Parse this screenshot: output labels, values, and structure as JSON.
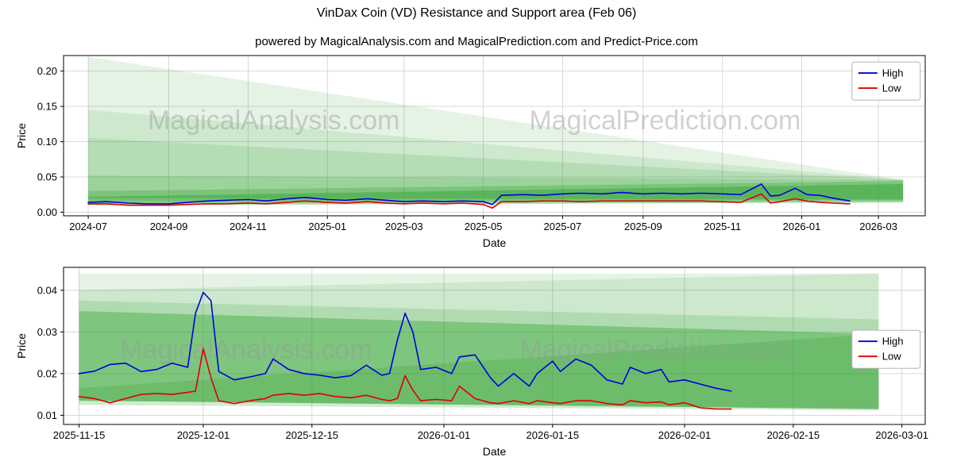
{
  "title": "VinDax Coin (VD) Resistance and Support area (Feb 06)",
  "subtitle": "powered by MagicalAnalysis.com and MagicalPrediction.com and Predict-Price.com",
  "colors": {
    "high_line": "#0000dd",
    "low_line": "#dd0000",
    "band_green": "#2ca02c",
    "grid": "#d3d3d3",
    "spine": "#000000",
    "watermark": "#999999"
  },
  "chart_data": [
    {
      "type": "line",
      "xlabel": "Date",
      "ylabel": "Price",
      "x_domain": [
        "2024-06-12",
        "2026-04-06"
      ],
      "y_domain": [
        -0.005,
        0.222
      ],
      "x_ticks": [
        {
          "v": "2024-07-01",
          "label": "2024-07"
        },
        {
          "v": "2024-09-01",
          "label": "2024-09"
        },
        {
          "v": "2024-11-01",
          "label": "2024-11"
        },
        {
          "v": "2025-01-01",
          "label": "2025-01"
        },
        {
          "v": "2025-03-01",
          "label": "2025-03"
        },
        {
          "v": "2025-05-01",
          "label": "2025-05"
        },
        {
          "v": "2025-07-01",
          "label": "2025-07"
        },
        {
          "v": "2025-09-01",
          "label": "2025-09"
        },
        {
          "v": "2025-11-01",
          "label": "2025-11"
        },
        {
          "v": "2026-01-01",
          "label": "2026-01"
        },
        {
          "v": "2026-03-01",
          "label": "2026-03"
        }
      ],
      "y_ticks": [
        {
          "v": 0.0,
          "label": "0.00"
        },
        {
          "v": 0.05,
          "label": "0.05"
        },
        {
          "v": 0.1,
          "label": "0.10"
        },
        {
          "v": 0.15,
          "label": "0.15"
        },
        {
          "v": 0.2,
          "label": "0.20"
        }
      ],
      "watermarks": [
        {
          "text": "MagicalAnalysis.com",
          "fx": 0.244,
          "fy": 0.4
        },
        {
          "text": "MagicalPrediction.com",
          "fx": 0.698,
          "fy": 0.4
        }
      ],
      "legend": {
        "fx": 0.915,
        "fy": 0.04,
        "entries": [
          {
            "label": "High",
            "color": "#0000dd"
          },
          {
            "label": "Low",
            "color": "#dd0000"
          }
        ]
      },
      "bands": [
        {
          "x0": "2024-07-01",
          "x1": "2026-03-20",
          "y_left": [
            0.02,
            0.22
          ],
          "y_right": [
            0.018,
            0.046
          ],
          "alpha": 0.12
        },
        {
          "x0": "2024-07-01",
          "x1": "2026-03-20",
          "y_left": [
            0.02,
            0.145
          ],
          "y_right": [
            0.018,
            0.046
          ],
          "alpha": 0.13
        },
        {
          "x0": "2024-07-01",
          "x1": "2026-03-20",
          "y_left": [
            0.02,
            0.105
          ],
          "y_right": [
            0.018,
            0.046
          ],
          "alpha": 0.15
        },
        {
          "x0": "2024-07-01",
          "x1": "2026-03-20",
          "y_left": [
            0.016,
            0.052
          ],
          "y_right": [
            0.018,
            0.046
          ],
          "alpha": 0.18
        },
        {
          "x0": "2024-07-01",
          "x1": "2026-03-20",
          "y_left": [
            0.013,
            0.03
          ],
          "y_right": [
            0.016,
            0.044
          ],
          "alpha": 0.28
        },
        {
          "x0": "2024-07-01",
          "x1": "2026-03-20",
          "y_left": [
            0.01,
            0.022
          ],
          "y_right": [
            0.014,
            0.04
          ],
          "alpha": 0.42
        }
      ],
      "x": [
        "2024-07-01",
        "2024-07-15",
        "2024-08-01",
        "2024-08-15",
        "2024-09-01",
        "2024-09-15",
        "2024-10-01",
        "2024-10-15",
        "2024-11-01",
        "2024-11-15",
        "2024-12-01",
        "2024-12-15",
        "2025-01-01",
        "2025-01-15",
        "2025-02-01",
        "2025-02-15",
        "2025-03-01",
        "2025-03-15",
        "2025-04-01",
        "2025-04-15",
        "2025-05-01",
        "2025-05-08",
        "2025-05-15",
        "2025-06-01",
        "2025-06-15",
        "2025-07-01",
        "2025-07-15",
        "2025-08-01",
        "2025-08-15",
        "2025-09-01",
        "2025-09-15",
        "2025-10-01",
        "2025-10-15",
        "2025-11-01",
        "2025-11-15",
        "2025-12-01",
        "2025-12-08",
        "2025-12-15",
        "2025-12-27",
        "2026-01-05",
        "2026-01-15",
        "2026-01-25",
        "2026-02-07"
      ],
      "series": [
        {
          "name": "High",
          "color": "#0000dd",
          "values": [
            0.014,
            0.015,
            0.013,
            0.012,
            0.012,
            0.014,
            0.016,
            0.017,
            0.018,
            0.016,
            0.019,
            0.021,
            0.018,
            0.017,
            0.019,
            0.017,
            0.015,
            0.016,
            0.015,
            0.016,
            0.015,
            0.011,
            0.024,
            0.025,
            0.024,
            0.026,
            0.027,
            0.026,
            0.028,
            0.026,
            0.027,
            0.026,
            0.027,
            0.026,
            0.025,
            0.04,
            0.023,
            0.024,
            0.034,
            0.025,
            0.024,
            0.02,
            0.016
          ]
        },
        {
          "name": "Low",
          "color": "#dd0000",
          "values": [
            0.012,
            0.012,
            0.01,
            0.01,
            0.01,
            0.011,
            0.012,
            0.012,
            0.013,
            0.012,
            0.014,
            0.016,
            0.014,
            0.013,
            0.015,
            0.013,
            0.012,
            0.013,
            0.012,
            0.013,
            0.011,
            0.006,
            0.015,
            0.015,
            0.016,
            0.016,
            0.015,
            0.016,
            0.016,
            0.016,
            0.016,
            0.016,
            0.016,
            0.015,
            0.014,
            0.026,
            0.013,
            0.015,
            0.019,
            0.016,
            0.014,
            0.013,
            0.012
          ]
        }
      ]
    },
    {
      "type": "line",
      "xlabel": "Date",
      "ylabel": "Price",
      "x_domain": [
        "2025-11-13",
        "2026-03-04"
      ],
      "y_domain": [
        0.0078,
        0.0455
      ],
      "x_ticks": [
        {
          "v": "2025-11-15",
          "label": "2025-11-15"
        },
        {
          "v": "2025-12-01",
          "label": "2025-12-01"
        },
        {
          "v": "2025-12-15",
          "label": "2025-12-15"
        },
        {
          "v": "2026-01-01",
          "label": "2026-01-01"
        },
        {
          "v": "2026-01-15",
          "label": "2026-01-15"
        },
        {
          "v": "2026-02-01",
          "label": "2026-02-01"
        },
        {
          "v": "2026-02-15",
          "label": "2026-02-15"
        },
        {
          "v": "2026-03-01",
          "label": "2026-03-01"
        }
      ],
      "y_ticks": [
        {
          "v": 0.01,
          "label": "0.01"
        },
        {
          "v": 0.02,
          "label": "0.02"
        },
        {
          "v": 0.03,
          "label": "0.03"
        },
        {
          "v": 0.04,
          "label": "0.04"
        }
      ],
      "watermarks": [
        {
          "text": "MagicalAnalysis.com",
          "fx": 0.212,
          "fy": 0.52
        },
        {
          "text": "MagicalPrediction.com",
          "fx": 0.687,
          "fy": 0.52
        }
      ],
      "legend": {
        "fx": 0.915,
        "fy": 0.4,
        "entries": [
          {
            "label": "High",
            "color": "#0000dd"
          },
          {
            "label": "Low",
            "color": "#dd0000"
          }
        ]
      },
      "bands": [
        {
          "x0": "2025-11-15",
          "x1": "2026-02-26",
          "y_left": [
            0.0135,
            0.044
          ],
          "y_right": [
            0.0115,
            0.044
          ],
          "alpha": 0.12
        },
        {
          "x0": "2025-11-15",
          "x1": "2026-02-26",
          "y_left": [
            0.0135,
            0.04
          ],
          "y_right": [
            0.0115,
            0.044
          ],
          "alpha": 0.13
        },
        {
          "x0": "2025-11-15",
          "x1": "2026-02-26",
          "y_left": [
            0.0135,
            0.0375
          ],
          "y_right": [
            0.0115,
            0.033
          ],
          "alpha": 0.18
        },
        {
          "x0": "2025-11-15",
          "x1": "2026-02-26",
          "y_left": [
            0.0135,
            0.035
          ],
          "y_right": [
            0.0115,
            0.0295
          ],
          "alpha": 0.38
        },
        {
          "x0": "2025-11-15",
          "x1": "2026-02-26",
          "y_left": [
            0.0125,
            0.0165
          ],
          "y_right": [
            0.0112,
            0.0295
          ],
          "alpha": 0.22
        }
      ],
      "x": [
        "2025-11-15",
        "2025-11-17",
        "2025-11-19",
        "2025-11-21",
        "2025-11-23",
        "2025-11-25",
        "2025-11-27",
        "2025-11-29",
        "2025-11-30",
        "2025-12-01",
        "2025-12-02",
        "2025-12-03",
        "2025-12-05",
        "2025-12-07",
        "2025-12-09",
        "2025-12-10",
        "2025-12-12",
        "2025-12-14",
        "2025-12-16",
        "2025-12-18",
        "2025-12-20",
        "2025-12-22",
        "2025-12-24",
        "2025-12-25",
        "2025-12-26",
        "2025-12-27",
        "2025-12-28",
        "2025-12-29",
        "2025-12-31",
        "2026-01-02",
        "2026-01-03",
        "2026-01-05",
        "2026-01-07",
        "2026-01-08",
        "2026-01-10",
        "2026-01-12",
        "2026-01-13",
        "2026-01-15",
        "2026-01-16",
        "2026-01-18",
        "2026-01-20",
        "2026-01-22",
        "2026-01-24",
        "2026-01-25",
        "2026-01-27",
        "2026-01-29",
        "2026-01-30",
        "2026-02-01",
        "2026-02-03",
        "2026-02-05",
        "2026-02-07"
      ],
      "series": [
        {
          "name": "High",
          "color": "#0000dd",
          "values": [
            0.02,
            0.0206,
            0.0222,
            0.0225,
            0.0205,
            0.021,
            0.0225,
            0.0215,
            0.0345,
            0.0395,
            0.0375,
            0.0205,
            0.0185,
            0.0192,
            0.02,
            0.0235,
            0.021,
            0.02,
            0.0196,
            0.019,
            0.0195,
            0.022,
            0.0196,
            0.02,
            0.028,
            0.0345,
            0.03,
            0.021,
            0.0215,
            0.02,
            0.024,
            0.0245,
            0.019,
            0.017,
            0.02,
            0.017,
            0.02,
            0.023,
            0.0205,
            0.0235,
            0.022,
            0.0185,
            0.0175,
            0.0215,
            0.02,
            0.021,
            0.018,
            0.0185,
            0.0175,
            0.0165,
            0.0158
          ]
        },
        {
          "name": "Low",
          "color": "#dd0000",
          "values": [
            0.0145,
            0.014,
            0.013,
            0.014,
            0.015,
            0.0152,
            0.015,
            0.0155,
            0.0158,
            0.026,
            0.019,
            0.0135,
            0.0128,
            0.0135,
            0.014,
            0.0148,
            0.0152,
            0.0148,
            0.0152,
            0.0145,
            0.0142,
            0.0148,
            0.0138,
            0.0135,
            0.014,
            0.0195,
            0.016,
            0.0135,
            0.0138,
            0.0135,
            0.017,
            0.014,
            0.013,
            0.0128,
            0.0135,
            0.0128,
            0.0135,
            0.013,
            0.0128,
            0.0135,
            0.0135,
            0.0128,
            0.0125,
            0.0135,
            0.013,
            0.0132,
            0.0125,
            0.013,
            0.0118,
            0.0115,
            0.0115
          ]
        }
      ]
    }
  ]
}
